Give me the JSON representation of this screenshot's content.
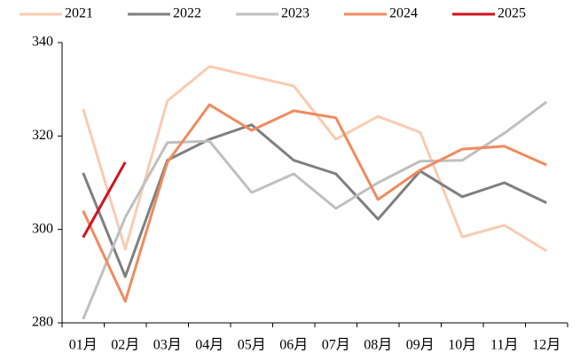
{
  "chart_data": {
    "type": "line",
    "categories": [
      "01月",
      "02月",
      "03月",
      "04月",
      "05月",
      "06月",
      "07月",
      "08月",
      "09月",
      "10月",
      "11月",
      "12月"
    ],
    "series": [
      {
        "name": "2021",
        "color": "#f9cbb0",
        "values": [
          325.8,
          295.8,
          327.5,
          334.9,
          332.8,
          330.7,
          319.3,
          324.2,
          320.8,
          298.4,
          300.9,
          295.4
        ]
      },
      {
        "name": "2022",
        "color": "#7f7f7f",
        "values": [
          312.1,
          289.9,
          314.8,
          319.3,
          322.4,
          314.8,
          311.9,
          302.2,
          312.5,
          307.0,
          310.0,
          305.7
        ]
      },
      {
        "name": "2023",
        "color": "#bfbfbf",
        "values": [
          280.8,
          302.6,
          318.6,
          318.9,
          307.9,
          311.9,
          304.5,
          310.0,
          314.6,
          314.8,
          320.6,
          327.3
        ]
      },
      {
        "name": "2024",
        "color": "#f08a5d",
        "values": [
          304.0,
          284.6,
          314.4,
          326.7,
          321.2,
          325.4,
          323.9,
          306.4,
          312.7,
          317.2,
          317.8,
          313.8
        ]
      },
      {
        "name": "2025",
        "color": "#d0121e",
        "values": [
          298.3,
          314.4,
          null,
          null,
          null,
          null,
          null,
          null,
          null,
          null,
          null,
          null
        ]
      }
    ],
    "ylim": [
      280,
      340
    ],
    "yticks": [
      280,
      300,
      320,
      340
    ],
    "grid": false,
    "legend": "top"
  }
}
